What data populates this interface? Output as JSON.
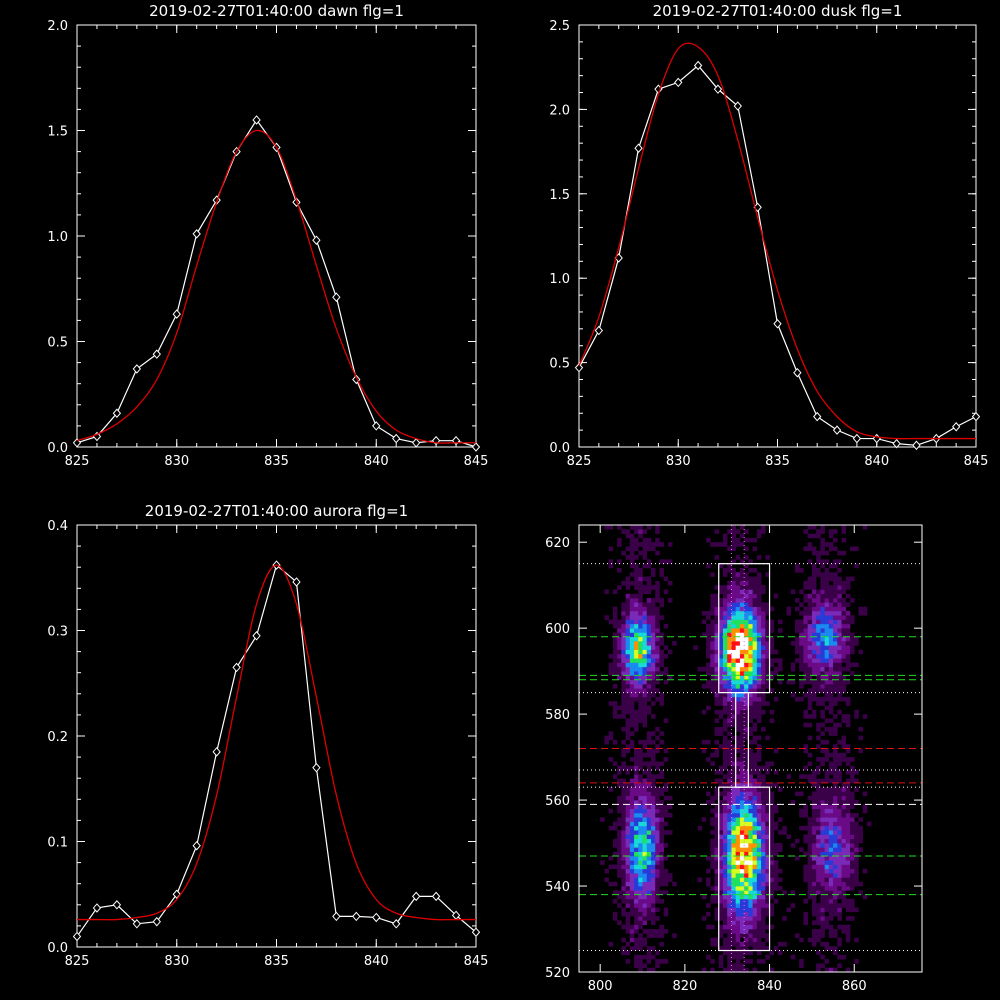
{
  "chart_data": [
    {
      "type": "line",
      "title": "2019-02-27T01:40:00 dawn flg=1",
      "xlim": [
        825,
        845
      ],
      "ylim": [
        0,
        2.0
      ],
      "xticks": [
        "825",
        "830",
        "835",
        "840",
        "845"
      ],
      "yticks": [
        "0.0",
        "0.5",
        "1.0",
        "1.5",
        "2.0"
      ],
      "grid": false,
      "series": [
        {
          "color": "#ffffff",
          "marker": "diamond",
          "x": [
            825,
            826,
            827,
            828,
            829,
            830,
            831,
            832,
            833,
            834,
            835,
            836,
            837,
            838,
            839,
            840,
            841,
            842,
            843,
            844,
            845
          ],
          "values": [
            0.02,
            0.05,
            0.16,
            0.37,
            0.44,
            0.63,
            1.01,
            1.17,
            1.4,
            1.55,
            1.42,
            1.16,
            0.98,
            0.71,
            0.32,
            0.1,
            0.04,
            0.02,
            0.03,
            0.03,
            0.0
          ]
        },
        {
          "color": "#dd0000",
          "model": "gaussian",
          "x": [
            825,
            826,
            827,
            828,
            829,
            830,
            831,
            832,
            833,
            834,
            835,
            836,
            837,
            838,
            839,
            840,
            841,
            842,
            843,
            844,
            845
          ],
          "values": [
            0.03,
            0.06,
            0.11,
            0.19,
            0.32,
            0.54,
            0.86,
            1.16,
            1.4,
            1.5,
            1.42,
            1.17,
            0.86,
            0.56,
            0.33,
            0.17,
            0.08,
            0.04,
            0.02,
            0.02,
            0.02
          ]
        }
      ]
    },
    {
      "type": "line",
      "title": "2019-02-27T01:40:00 dusk flg=1",
      "xlim": [
        825,
        845
      ],
      "ylim": [
        0,
        2.5
      ],
      "xticks": [
        "825",
        "830",
        "835",
        "840",
        "845"
      ],
      "yticks": [
        "0.0",
        "0.5",
        "1.0",
        "1.5",
        "2.0",
        "2.5"
      ],
      "grid": false,
      "series": [
        {
          "color": "#ffffff",
          "marker": "diamond",
          "x": [
            825,
            826,
            827,
            828,
            829,
            830,
            831,
            832,
            833,
            834,
            835,
            836,
            837,
            838,
            839,
            840,
            841,
            842,
            843,
            844,
            845
          ],
          "values": [
            0.47,
            0.69,
            1.12,
            1.77,
            2.12,
            2.16,
            2.26,
            2.12,
            2.02,
            1.42,
            0.73,
            0.44,
            0.18,
            0.1,
            0.05,
            0.05,
            0.02,
            0.01,
            0.05,
            0.12,
            0.18
          ]
        },
        {
          "color": "#dd0000",
          "model": "gaussian",
          "x": [
            825,
            826,
            827,
            828,
            829,
            830,
            831,
            832,
            833,
            834,
            835,
            836,
            837,
            838,
            839,
            840,
            841,
            842,
            843,
            844,
            845
          ],
          "values": [
            0.48,
            0.77,
            1.18,
            1.65,
            2.09,
            2.36,
            2.37,
            2.2,
            1.82,
            1.36,
            0.93,
            0.58,
            0.33,
            0.18,
            0.09,
            0.06,
            0.05,
            0.05,
            0.05,
            0.05,
            0.05
          ]
        }
      ]
    },
    {
      "type": "line",
      "title": "2019-02-27T01:40:00 aurora flg=1",
      "xlim": [
        825,
        845
      ],
      "ylim": [
        0,
        0.4
      ],
      "xticks": [
        "825",
        "830",
        "835",
        "840",
        "845"
      ],
      "yticks": [
        "0.0",
        "0.1",
        "0.2",
        "0.3",
        "0.4"
      ],
      "grid": false,
      "series": [
        {
          "color": "#ffffff",
          "marker": "diamond",
          "x": [
            825,
            826,
            827,
            828,
            829,
            830,
            831,
            832,
            833,
            834,
            835,
            836,
            837,
            838,
            839,
            840,
            841,
            842,
            843,
            844,
            845
          ],
          "values": [
            0.01,
            0.037,
            0.04,
            0.022,
            0.024,
            0.05,
            0.096,
            0.185,
            0.265,
            0.295,
            0.362,
            0.346,
            0.17,
            0.029,
            0.029,
            0.028,
            0.022,
            0.048,
            0.048,
            0.03,
            0.014
          ]
        },
        {
          "color": "#dd0000",
          "model": "gaussian",
          "x": [
            825,
            826,
            827,
            828,
            829,
            830,
            831,
            832,
            833,
            834,
            835,
            836,
            837,
            838,
            839,
            840,
            841,
            842,
            843,
            844,
            845
          ],
          "values": [
            0.026,
            0.026,
            0.026,
            0.028,
            0.032,
            0.045,
            0.079,
            0.144,
            0.237,
            0.325,
            0.362,
            0.325,
            0.237,
            0.144,
            0.079,
            0.045,
            0.032,
            0.028,
            0.026,
            0.026,
            0.026
          ]
        }
      ]
    },
    {
      "type": "heatmap",
      "title": "",
      "xlim": [
        795,
        876
      ],
      "ylim": [
        520,
        624
      ],
      "xticks": [
        "800",
        "820",
        "840",
        "860"
      ],
      "yticks": [
        "520",
        "540",
        "560",
        "580",
        "600",
        "620"
      ],
      "colormap": [
        "#000000",
        "#3a0048",
        "#6a0a86",
        "#7a2ab8",
        "#2a3ad8",
        "#1a8af0",
        "#18d8d8",
        "#20e060",
        "#d8ff20",
        "#ff9000",
        "#ff1010",
        "#ffffff"
      ],
      "blobs": [
        {
          "x": 809,
          "y": 595,
          "sx": 2.5,
          "sy": 5.5,
          "amp": 0.62
        },
        {
          "x": 833,
          "y": 595,
          "sx": 3.2,
          "sy": 6.5,
          "amp": 1.0
        },
        {
          "x": 853,
          "y": 598,
          "sx": 3.2,
          "sy": 5.5,
          "amp": 0.38
        },
        {
          "x": 810,
          "y": 549,
          "sx": 2.5,
          "sy": 8.0,
          "amp": 0.55
        },
        {
          "x": 834,
          "y": 547,
          "sx": 3.2,
          "sy": 9.0,
          "amp": 0.85
        },
        {
          "x": 855,
          "y": 549,
          "sx": 3.2,
          "sy": 7.0,
          "amp": 0.3
        }
      ],
      "overlays": {
        "boxes": [
          {
            "x0": 828,
            "x1": 840,
            "y0": 585,
            "y1": 615,
            "color": "#ffffff"
          },
          {
            "x0": 828,
            "x1": 840,
            "y0": 525,
            "y1": 563,
            "color": "#ffffff"
          },
          {
            "x0": 832,
            "x1": 835,
            "y0": 563,
            "y1": 585,
            "color": "#ffffff"
          }
        ],
        "hlines_dotted_white": [
          615,
          585,
          567,
          563,
          525
        ],
        "hlines_dashed_green": [
          598,
          589,
          588,
          547,
          538
        ],
        "hlines_dashed_red": [
          572,
          564
        ],
        "hlines_dashed_white": [
          559
        ],
        "vlines_dotted": [
          831,
          834
        ]
      }
    }
  ]
}
